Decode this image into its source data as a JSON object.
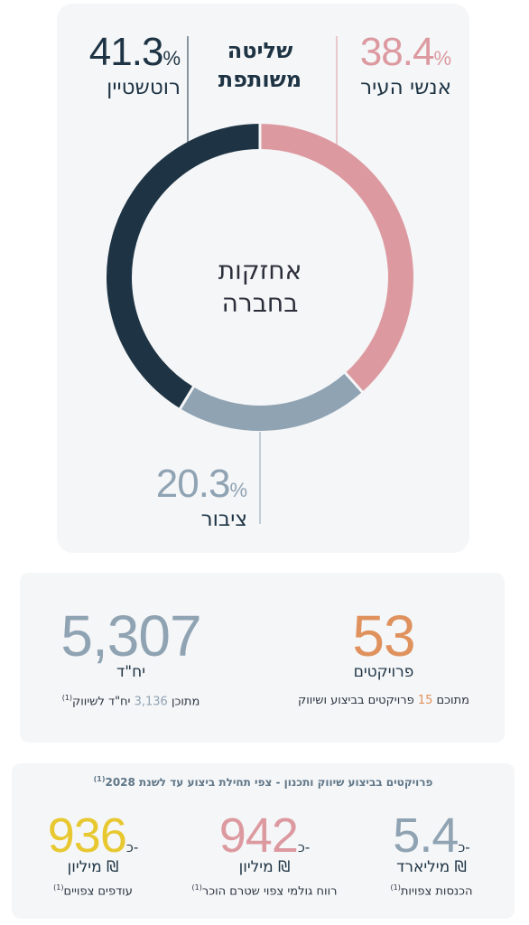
{
  "colors": {
    "rothstein": "#1e3444",
    "town_people": "#dc9aa0",
    "public": "#8fa3b3",
    "orange": "#e0925e",
    "yellow": "#e8c830",
    "pink": "#dc9aa0",
    "grey_blue": "#8fa3b3"
  },
  "chart_data": {
    "type": "pie",
    "donut": true,
    "title_line1": "שליטה",
    "title_line2": "משותפת",
    "center_line1": "אחזקות",
    "center_line2": "בחברה",
    "slices": [
      {
        "name": "אנשי העיר",
        "value": 38.4,
        "display": "38.4",
        "color": "#dc9aa0"
      },
      {
        "name": "ציבור",
        "value": 20.3,
        "display": "20.3",
        "color": "#8fa3b3"
      },
      {
        "name": "רוטשטיין",
        "value": 41.3,
        "display": "41.3",
        "color": "#1e3444"
      }
    ],
    "percent_sign": "%"
  },
  "stats": {
    "projects": {
      "value": "53",
      "label": "פרויקטים",
      "note_prefix": "מתוכם",
      "note_number": "15",
      "note_suffix": "פרויקטים בביצוע ושיווק"
    },
    "units": {
      "value": "5,307",
      "label": "יח\"ד",
      "note_prefix": "מתוכן",
      "note_number": "3,136",
      "note_suffix": "יח\"ד לשיווק",
      "note_ref": "(1)"
    }
  },
  "forecast": {
    "header": "פרויקטים בביצוע שיווק ותכנון - צפי תחילת ביצוע עד לשנת 2028",
    "header_ref": "(1)",
    "approx_prefix": "כ-",
    "items": [
      {
        "value": "5.4",
        "unit": "מיליארד ₪",
        "label": "הכנסות צפויות",
        "ref": "(1)"
      },
      {
        "value": "942",
        "unit": "מיליון ₪",
        "label": "רווח גולמי צפוי שטרם הוכר",
        "ref": "(1)"
      },
      {
        "value": "936",
        "unit": "מיליון ₪",
        "label": "עודפים צפויים",
        "ref": "(1)"
      }
    ]
  }
}
